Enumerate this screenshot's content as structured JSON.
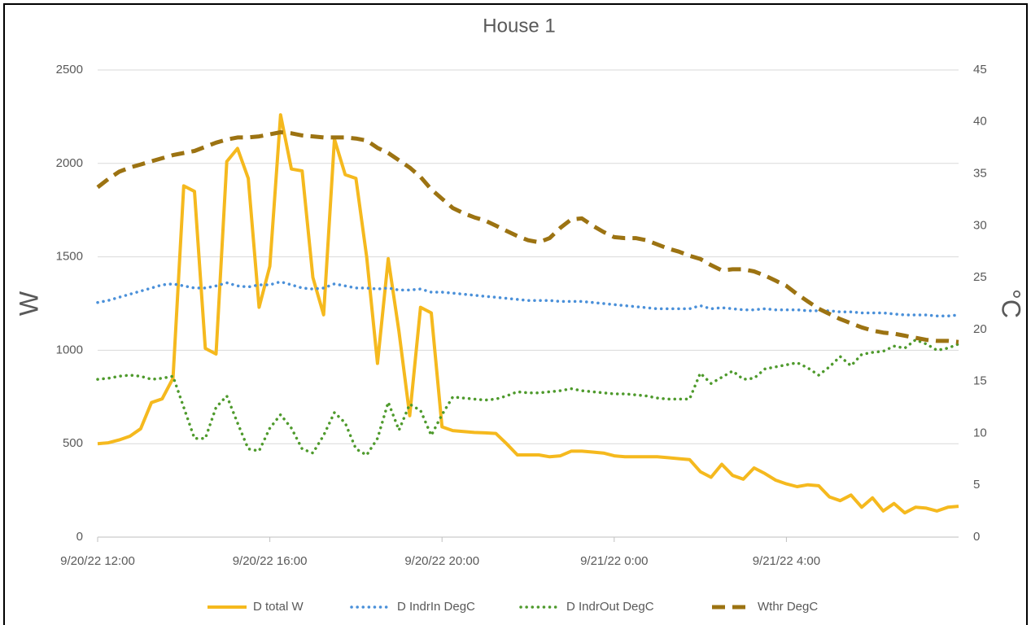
{
  "chart_data": {
    "type": "line",
    "title": "House 1",
    "y_label": "W",
    "y2_label": "°C",
    "x": [
      "2022-09-20T12:00",
      "2022-09-20T12:15",
      "2022-09-20T12:30",
      "2022-09-20T12:45",
      "2022-09-20T13:00",
      "2022-09-20T13:15",
      "2022-09-20T13:30",
      "2022-09-20T13:45",
      "2022-09-20T14:00",
      "2022-09-20T14:15",
      "2022-09-20T14:30",
      "2022-09-20T14:45",
      "2022-09-20T15:00",
      "2022-09-20T15:15",
      "2022-09-20T15:30",
      "2022-09-20T15:45",
      "2022-09-20T16:00",
      "2022-09-20T16:15",
      "2022-09-20T16:30",
      "2022-09-20T16:45",
      "2022-09-20T17:00",
      "2022-09-20T17:15",
      "2022-09-20T17:30",
      "2022-09-20T17:45",
      "2022-09-20T18:00",
      "2022-09-20T18:15",
      "2022-09-20T18:30",
      "2022-09-20T18:45",
      "2022-09-20T19:00",
      "2022-09-20T19:15",
      "2022-09-20T19:30",
      "2022-09-20T19:45",
      "2022-09-20T20:00",
      "2022-09-20T20:15",
      "2022-09-20T20:30",
      "2022-09-20T20:45",
      "2022-09-20T21:00",
      "2022-09-20T21:15",
      "2022-09-20T21:30",
      "2022-09-20T21:45",
      "2022-09-20T22:00",
      "2022-09-20T22:15",
      "2022-09-20T22:30",
      "2022-09-20T22:45",
      "2022-09-20T23:00",
      "2022-09-20T23:15",
      "2022-09-20T23:30",
      "2022-09-20T23:45",
      "2022-09-21T00:00",
      "2022-09-21T00:15",
      "2022-09-21T00:30",
      "2022-09-21T00:45",
      "2022-09-21T01:00",
      "2022-09-21T01:15",
      "2022-09-21T01:30",
      "2022-09-21T01:45",
      "2022-09-21T02:00",
      "2022-09-21T02:15",
      "2022-09-21T02:30",
      "2022-09-21T02:45",
      "2022-09-21T03:00",
      "2022-09-21T03:15",
      "2022-09-21T03:30",
      "2022-09-21T03:45",
      "2022-09-21T04:00",
      "2022-09-21T04:15",
      "2022-09-21T04:30",
      "2022-09-21T04:45",
      "2022-09-21T05:00",
      "2022-09-21T05:15",
      "2022-09-21T05:30",
      "2022-09-21T05:45",
      "2022-09-21T06:00",
      "2022-09-21T06:15",
      "2022-09-21T06:30",
      "2022-09-21T06:45",
      "2022-09-21T07:00",
      "2022-09-21T07:15",
      "2022-09-21T07:30",
      "2022-09-21T07:45",
      "2022-09-21T08:00"
    ],
    "xlim": [
      "2022-09-20T12:00",
      "2022-09-21T08:00"
    ],
    "xticks": [
      {
        "value": "2022-09-20T12:00",
        "label": "9/20/22 12:00"
      },
      {
        "value": "2022-09-20T16:00",
        "label": "9/20/22 16:00"
      },
      {
        "value": "2022-09-20T20:00",
        "label": "9/20/22 20:00"
      },
      {
        "value": "2022-09-21T00:00",
        "label": "9/21/22 0:00"
      },
      {
        "value": "2022-09-21T04:00",
        "label": "9/21/22 4:00"
      }
    ],
    "ylim": [
      0,
      2500
    ],
    "yticks": [
      0,
      500,
      1000,
      1500,
      2000,
      2500
    ],
    "y2lim": [
      0,
      45
    ],
    "y2ticks": [
      0,
      5,
      10,
      15,
      20,
      25,
      30,
      35,
      40,
      45
    ],
    "grid": true,
    "legend": "bottom",
    "series": [
      {
        "name": "D total W",
        "color": "#f5b91e",
        "style": "solid",
        "values": [
          500,
          505,
          520,
          540,
          580,
          720,
          740,
          850,
          1880,
          1850,
          1010,
          980,
          2010,
          2080,
          1920,
          1230,
          1450,
          2260,
          1970,
          1960,
          1390,
          1190,
          2130,
          1940,
          1920,
          1500,
          930,
          1490,
          1100,
          650,
          1230,
          1200,
          590,
          570,
          565,
          560,
          558,
          555,
          500,
          440,
          440,
          440,
          430,
          435,
          460,
          460,
          455,
          450,
          435,
          430,
          430,
          430,
          430,
          425,
          420,
          415,
          350,
          320,
          390,
          330,
          310,
          370,
          340,
          305,
          285,
          270,
          280,
          275,
          215,
          195,
          225,
          160,
          210,
          140,
          180,
          130,
          160,
          155,
          140,
          160,
          165
        ]
      },
      {
        "name": "D IndrIn DegC",
        "color": "#4a90d9",
        "style": "dotted",
        "axis": "y2",
        "values": [
          22.6,
          22.8,
          23.1,
          23.4,
          23.7,
          24.0,
          24.3,
          24.4,
          24.2,
          24.0,
          24.0,
          24.2,
          24.5,
          24.2,
          24.1,
          24.3,
          24.3,
          24.6,
          24.3,
          24.0,
          23.9,
          24.0,
          24.4,
          24.2,
          24.0,
          24.0,
          23.9,
          24.0,
          23.8,
          23.8,
          23.9,
          23.6,
          23.6,
          23.5,
          23.4,
          23.3,
          23.2,
          23.1,
          23.0,
          22.9,
          22.8,
          22.8,
          22.8,
          22.7,
          22.7,
          22.7,
          22.6,
          22.5,
          22.4,
          22.3,
          22.2,
          22.1,
          22.0,
          22.0,
          22.0,
          22.0,
          22.3,
          22.0,
          22.1,
          22.0,
          21.9,
          21.9,
          22.0,
          21.9,
          21.9,
          21.9,
          21.8,
          21.8,
          21.8,
          21.7,
          21.7,
          21.6,
          21.6,
          21.6,
          21.5,
          21.4,
          21.4,
          21.4,
          21.3,
          21.3,
          21.4
        ]
      },
      {
        "name": "D IndrOut DegC",
        "color": "#4e9a2c",
        "style": "dotted",
        "axis": "y2",
        "values": [
          15.2,
          15.3,
          15.5,
          15.6,
          15.5,
          15.2,
          15.3,
          15.5,
          12.5,
          9.5,
          9.5,
          12.5,
          13.6,
          11.0,
          8.5,
          8.3,
          10.5,
          11.8,
          10.5,
          8.5,
          8.1,
          9.8,
          12.0,
          11.0,
          8.5,
          7.9,
          9.5,
          13.0,
          10.3,
          12.8,
          12.2,
          9.8,
          11.8,
          13.5,
          13.4,
          13.3,
          13.2,
          13.3,
          13.6,
          14.0,
          13.9,
          13.9,
          14.0,
          14.1,
          14.3,
          14.1,
          14.0,
          13.9,
          13.8,
          13.8,
          13.7,
          13.6,
          13.4,
          13.3,
          13.3,
          13.3,
          15.8,
          14.8,
          15.4,
          16.0,
          15.2,
          15.3,
          16.2,
          16.4,
          16.6,
          16.8,
          16.3,
          15.6,
          16.4,
          17.4,
          16.5,
          17.6,
          17.8,
          17.9,
          18.4,
          18.2,
          19.0,
          18.6,
          18.0,
          18.2,
          18.6
        ]
      },
      {
        "name": "Wthr DegC",
        "color": "#9c7312",
        "style": "dashed",
        "axis": "y2",
        "values": [
          33.7,
          34.5,
          35.2,
          35.6,
          35.9,
          36.2,
          36.5,
          36.8,
          37.0,
          37.2,
          37.6,
          38.0,
          38.3,
          38.5,
          38.5,
          38.6,
          38.8,
          39.0,
          38.9,
          38.7,
          38.6,
          38.5,
          38.5,
          38.5,
          38.4,
          38.2,
          37.5,
          37.0,
          36.3,
          35.6,
          34.7,
          33.5,
          32.6,
          31.7,
          31.2,
          30.8,
          30.5,
          30.0,
          29.5,
          29.0,
          28.6,
          28.4,
          28.8,
          29.8,
          30.6,
          30.7,
          30.0,
          29.4,
          28.9,
          28.8,
          28.8,
          28.6,
          28.2,
          27.8,
          27.5,
          27.1,
          26.8,
          26.2,
          25.7,
          25.8,
          25.8,
          25.6,
          25.2,
          24.7,
          24.2,
          23.4,
          22.7,
          22.0,
          21.5,
          21.0,
          20.6,
          20.2,
          19.9,
          19.7,
          19.6,
          19.4,
          19.2,
          19.0,
          18.9,
          18.9,
          18.8
        ]
      }
    ]
  }
}
